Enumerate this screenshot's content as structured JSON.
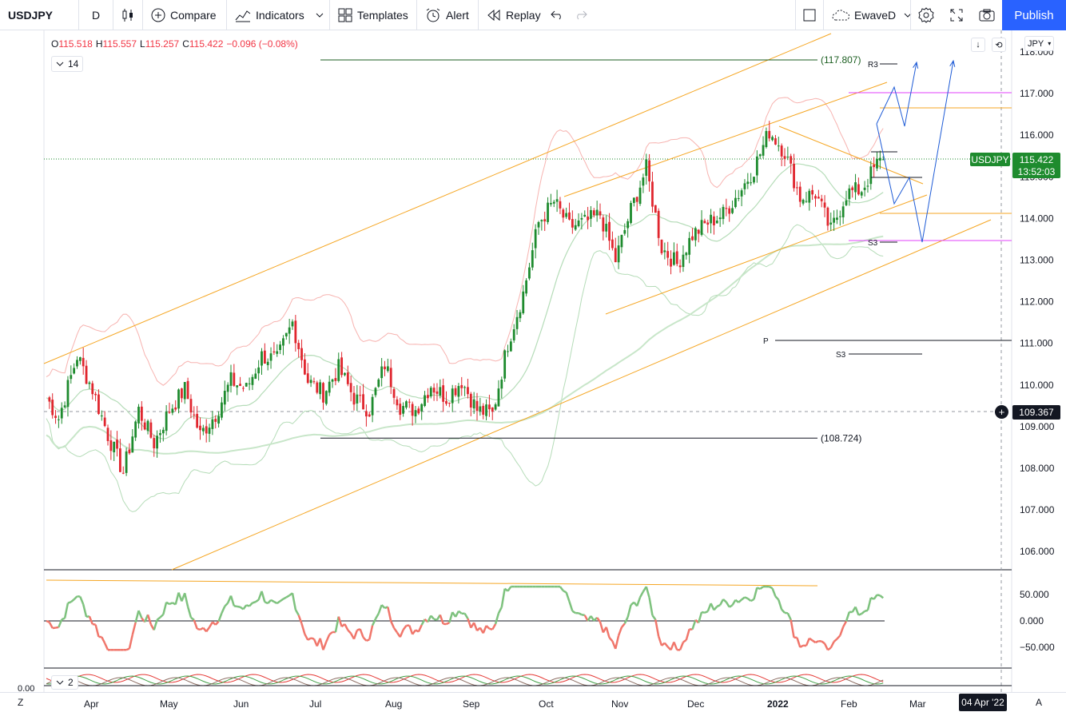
{
  "toolbar": {
    "symbol": "USDJPY",
    "interval": "D",
    "compare": "Compare",
    "indicators": "Indicators",
    "templates": "Templates",
    "alert": "Alert",
    "replay": "Replay",
    "layout_name": "EwaveD",
    "publish": "Publish"
  },
  "legend": {
    "o_label": "O",
    "o": "115.518",
    "h_label": "H",
    "h": "115.557",
    "l_label": "L",
    "l": "115.257",
    "c_label": "C",
    "c": "115.422",
    "change": "−0.096 (−0.08%)"
  },
  "indicator_pill": "14",
  "indicator_pill_2": "2",
  "currency_button": "JPY",
  "price_axis": [
    "118.000",
    "117.000",
    "116.000",
    "115.000",
    "114.000",
    "113.000",
    "112.000",
    "111.000",
    "110.000",
    "109.000",
    "108.000",
    "107.000",
    "106.000"
  ],
  "osc_axis": [
    "50.000",
    "0.000",
    "−50.000"
  ],
  "osc2_axis": "0.00",
  "last_price": {
    "symbol": "USDJPY",
    "price": "115.422",
    "countdown": "13:52:03"
  },
  "crosshair_price": "109.367",
  "time_axis": [
    "Apr",
    "May",
    "Jun",
    "Jul",
    "Aug",
    "Sep",
    "Oct",
    "Nov",
    "Dec",
    "2022",
    "Feb",
    "Mar"
  ],
  "crosshair_date": "04 Apr '22",
  "annotations": {
    "high_level": "(117.807)",
    "low_level": "(108.724)",
    "r3": "R3",
    "s3_upper": "S3",
    "pivot": "P",
    "s3_lower": "S3"
  },
  "bottom_left": "Z",
  "bottom_right": "A",
  "colors": {
    "up": "#26a69a",
    "bull": "#1e8b2e",
    "bear": "#e0262e",
    "accent": "#2962ff",
    "channel": "#f5a623",
    "wave": "#1e5bd6",
    "osc_up": "#7ec27e",
    "osc_down": "#f0766b",
    "fib": "#e040fb"
  },
  "chart_data": {
    "type": "candlestick",
    "symbol": "USDJPY",
    "ylim": [
      105.6,
      118.3
    ],
    "months": [
      "Apr",
      "May",
      "Jun",
      "Jul",
      "Aug",
      "Sep",
      "Oct",
      "Nov",
      "Dec",
      "2022",
      "Feb",
      "Mar"
    ],
    "close_path": [
      [
        0,
        109.7
      ],
      [
        4,
        109.2
      ],
      [
        10,
        110.7
      ],
      [
        15,
        109.9
      ],
      [
        20,
        108.8
      ],
      [
        25,
        107.9
      ],
      [
        30,
        109.4
      ],
      [
        35,
        108.6
      ],
      [
        40,
        109.4
      ],
      [
        45,
        109.9
      ],
      [
        50,
        108.8
      ],
      [
        55,
        109.3
      ],
      [
        60,
        110.1
      ],
      [
        65,
        109.9
      ],
      [
        70,
        110.7
      ],
      [
        75,
        110.6
      ],
      [
        80,
        111.5
      ],
      [
        85,
        110.1
      ],
      [
        90,
        109.8
      ],
      [
        95,
        110.4
      ],
      [
        100,
        109.7
      ],
      [
        105,
        109.4
      ],
      [
        110,
        110.5
      ],
      [
        115,
        109.5
      ],
      [
        120,
        109.4
      ],
      [
        125,
        110.0
      ],
      [
        130,
        109.7
      ],
      [
        135,
        110.1
      ],
      [
        140,
        109.4
      ],
      [
        145,
        109.3
      ],
      [
        150,
        111.0
      ],
      [
        155,
        112.2
      ],
      [
        160,
        113.9
      ],
      [
        165,
        114.4
      ],
      [
        170,
        113.8
      ],
      [
        175,
        113.9
      ],
      [
        180,
        114.1
      ],
      [
        185,
        113.0
      ],
      [
        190,
        114.2
      ],
      [
        195,
        115.2
      ],
      [
        200,
        113.3
      ],
      [
        205,
        112.9
      ],
      [
        210,
        113.6
      ],
      [
        215,
        113.9
      ],
      [
        220,
        114.1
      ],
      [
        225,
        114.6
      ],
      [
        230,
        115.2
      ],
      [
        235,
        116.1
      ],
      [
        240,
        115.6
      ],
      [
        245,
        114.5
      ],
      [
        250,
        114.6
      ],
      [
        255,
        113.7
      ],
      [
        260,
        114.6
      ],
      [
        265,
        114.7
      ],
      [
        270,
        115.3
      ],
      [
        272,
        115.422
      ]
    ],
    "level_high": 117.807,
    "level_low": 108.724,
    "last": 115.422,
    "oscillator_ylim": [
      -60,
      70
    ]
  }
}
